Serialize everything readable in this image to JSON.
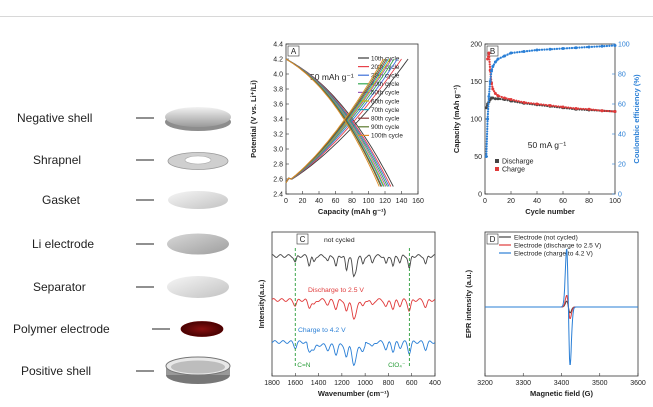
{
  "battery": {
    "components": [
      {
        "label": "Negative shell"
      },
      {
        "label": "Shrapnel"
      },
      {
        "label": "Gasket"
      },
      {
        "label": "Li electrode"
      },
      {
        "label": "Separator"
      },
      {
        "label": "Polymer electrode"
      },
      {
        "label": "Positive shell"
      }
    ]
  },
  "chart_data": [
    {
      "panel": "A",
      "type": "line",
      "annotation": "50 mAh g⁻¹",
      "xlabel": "Capacity (mAh g⁻¹)",
      "ylabel": "Potential (V vs. Li⁺/Li)",
      "xlim": [
        0,
        160
      ],
      "ylim": [
        2.4,
        4.4
      ],
      "xticks": [
        0,
        20,
        40,
        60,
        80,
        100,
        120,
        140,
        160
      ],
      "yticks": [
        2.4,
        2.6,
        2.8,
        3.0,
        3.2,
        3.4,
        3.6,
        3.8,
        4.0,
        4.2,
        4.4
      ],
      "series": [
        {
          "name": "10th cycle",
          "color": "#3a3a3a",
          "charge_end": 148,
          "discharge_end": 130
        },
        {
          "name": "20th cycle",
          "color": "#e8414a",
          "charge_end": 140,
          "discharge_end": 127
        },
        {
          "name": "30th cycle",
          "color": "#3e6fd9",
          "charge_end": 135,
          "discharge_end": 125
        },
        {
          "name": "40th cycle",
          "color": "#35a852",
          "charge_end": 131,
          "discharge_end": 123
        },
        {
          "name": "50th cycle",
          "color": "#9b59b6",
          "charge_end": 128,
          "discharge_end": 121
        },
        {
          "name": "60th cycle",
          "color": "#c8b400",
          "charge_end": 126,
          "discharge_end": 119
        },
        {
          "name": "70th cycle",
          "color": "#18a5b8",
          "charge_end": 124,
          "discharge_end": 118
        },
        {
          "name": "80th cycle",
          "color": "#8b3a3a",
          "charge_end": 122,
          "discharge_end": 116
        },
        {
          "name": "90th cycle",
          "color": "#5c7a2e",
          "charge_end": 120,
          "discharge_end": 115
        },
        {
          "name": "100th cycle",
          "color": "#e38b2a",
          "charge_end": 118,
          "discharge_end": 113
        }
      ]
    },
    {
      "panel": "B",
      "type": "scatter",
      "annotation": "50 mA g⁻¹",
      "xlabel": "Cycle number",
      "ylabel": "Capacity (mAh g⁻¹)",
      "ylabel2": "Coulombic efficiency (%)",
      "xlim": [
        0,
        100
      ],
      "ylim": [
        0,
        200
      ],
      "y2lim": [
        0,
        100
      ],
      "xticks": [
        0,
        20,
        40,
        60,
        80,
        100
      ],
      "yticks": [
        0,
        50,
        100,
        150,
        200
      ],
      "y2ticks": [
        0,
        20,
        40,
        60,
        80,
        100
      ],
      "series": [
        {
          "name": "Discharge",
          "color": "#444444",
          "x": [
            1,
            2,
            3,
            4,
            5,
            6,
            8,
            10,
            15,
            20,
            30,
            40,
            50,
            60,
            70,
            80,
            90,
            100
          ],
          "y": [
            115,
            120,
            123,
            126,
            128,
            128,
            127,
            127,
            126,
            124,
            121,
            119,
            117,
            115,
            113,
            112,
            111,
            110
          ]
        },
        {
          "name": "Charge",
          "color": "#e03a3a",
          "x": [
            2,
            3,
            4,
            5,
            6,
            8,
            10,
            15,
            20,
            30,
            40,
            50,
            60,
            70,
            80,
            90,
            100
          ],
          "y": [
            180,
            188,
            165,
            148,
            140,
            134,
            131,
            128,
            126,
            122,
            120,
            118,
            116,
            114,
            113,
            111,
            110
          ]
        },
        {
          "name": "Coulombic efficiency",
          "color": "#2a7fd6",
          "axis": "right",
          "x": [
            1,
            2,
            3,
            4,
            5,
            6,
            8,
            10,
            15,
            20,
            30,
            40,
            50,
            60,
            70,
            80,
            90,
            100
          ],
          "y": [
            25,
            50,
            65,
            75,
            82,
            85,
            88,
            90,
            92,
            94,
            95,
            96,
            96.5,
            97,
            97.5,
            98,
            98.5,
            99
          ]
        }
      ]
    },
    {
      "panel": "C",
      "type": "line",
      "xlabel": "Wavenumber (cm⁻¹)",
      "ylabel": "Intensity(a.u.)",
      "xlim": [
        1800,
        400
      ],
      "xticks": [
        1800,
        1600,
        1400,
        1200,
        1000,
        800,
        600,
        400
      ],
      "annotations": [
        "C=N",
        "ClO₄⁻"
      ],
      "series": [
        {
          "name": "not cycled",
          "color": "#444444"
        },
        {
          "name": "Discharge to 2.5 V",
          "color": "#e03a3a"
        },
        {
          "name": "Charge to 4.2 V",
          "color": "#2a7fd6"
        }
      ]
    },
    {
      "panel": "D",
      "type": "line",
      "xlabel": "Magnetic field (G)",
      "ylabel": "EPR intensity (a.u.)",
      "xlim": [
        3200,
        3600
      ],
      "xticks": [
        3200,
        3300,
        3400,
        3500,
        3600
      ],
      "series": [
        {
          "name": "Electrode (not cycled)",
          "color": "#444444",
          "amp": 0.1
        },
        {
          "name": "Electrode (discharge to 2.5 V)",
          "color": "#e03a3a",
          "amp": 0.2
        },
        {
          "name": "Electrode (charge to 4.2 V)",
          "color": "#2a7fd6",
          "amp": 1.0
        }
      ]
    }
  ]
}
